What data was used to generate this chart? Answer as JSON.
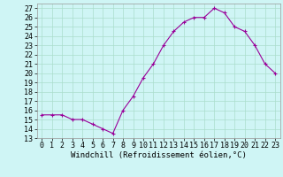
{
  "x": [
    0,
    1,
    2,
    3,
    4,
    5,
    6,
    7,
    8,
    9,
    10,
    11,
    12,
    13,
    14,
    15,
    16,
    17,
    18,
    19,
    20,
    21,
    22,
    23
  ],
  "y": [
    15.5,
    15.5,
    15.5,
    15.0,
    15.0,
    14.5,
    14.0,
    13.5,
    16.0,
    17.5,
    19.5,
    21.0,
    23.0,
    24.5,
    25.5,
    26.0,
    26.0,
    27.0,
    26.5,
    25.0,
    24.5,
    23.0,
    21.0,
    20.0
  ],
  "line_color": "#990099",
  "marker": "+",
  "markersize": 3,
  "linewidth": 0.8,
  "markeredgewidth": 0.8,
  "xlabel": "Windchill (Refroidissement éolien,°C)",
  "xlabel_fontsize": 6.5,
  "ylabel_ticks": [
    13,
    14,
    15,
    16,
    17,
    18,
    19,
    20,
    21,
    22,
    23,
    24,
    25,
    26,
    27
  ],
  "xlim": [
    -0.5,
    23.5
  ],
  "ylim": [
    13,
    27.5
  ],
  "bg_color": "#cff5f5",
  "grid_color": "#aaddcc",
  "tick_fontsize": 6,
  "xtick_labels": [
    "0",
    "1",
    "2",
    "3",
    "4",
    "5",
    "6",
    "7",
    "8",
    "9",
    "10",
    "11",
    "12",
    "13",
    "14",
    "15",
    "16",
    "17",
    "18",
    "19",
    "20",
    "21",
    "22",
    "23"
  ]
}
